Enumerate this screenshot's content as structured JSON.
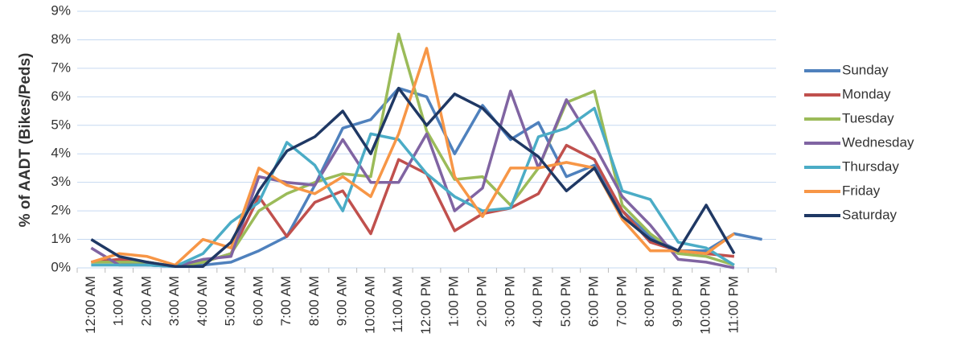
{
  "chart_data": {
    "type": "line",
    "y_label": "% of AADT (Bikes/Peds)",
    "categories": [
      "12:00 AM",
      "1:00 AM",
      "2:00 AM",
      "3:00 AM",
      "4:00 AM",
      "5:00 AM",
      "6:00 AM",
      "7:00 AM",
      "8:00 AM",
      "9:00 AM",
      "10:00 AM",
      "11:00 AM",
      "12:00 PM",
      "1:00 PM",
      "2:00 PM",
      "3:00 PM",
      "4:00 PM",
      "5:00 PM",
      "6:00 PM",
      "7:00 PM",
      "8:00 PM",
      "9:00 PM",
      "10:00 PM",
      "11:00 PM",
      null
    ],
    "series": [
      {
        "name": "Sunday",
        "color": "#4f81bd",
        "values": [
          0.2,
          0.2,
          0.1,
          0.05,
          0.1,
          0.2,
          0.6,
          1.1,
          2.9,
          4.9,
          5.2,
          6.3,
          6.0,
          4.0,
          5.7,
          4.5,
          5.1,
          3.2,
          3.6,
          2.0,
          1.1,
          0.6,
          0.6,
          1.2,
          1.0
        ]
      },
      {
        "name": "Monday",
        "color": "#c0504d",
        "values": [
          0.2,
          0.3,
          0.2,
          0.05,
          0.2,
          0.5,
          2.5,
          1.1,
          2.3,
          2.7,
          1.2,
          3.8,
          3.3,
          1.3,
          1.9,
          2.1,
          2.6,
          4.3,
          3.8,
          2.0,
          0.9,
          0.6,
          0.5,
          0.4,
          null
        ]
      },
      {
        "name": "Tuesday",
        "color": "#9bbb59",
        "values": [
          0.2,
          0.2,
          0.2,
          0.05,
          0.2,
          0.5,
          2.0,
          2.6,
          3.0,
          3.3,
          3.2,
          8.2,
          4.8,
          3.1,
          3.2,
          2.2,
          3.5,
          5.8,
          6.2,
          2.2,
          1.2,
          0.5,
          0.4,
          0.1,
          null
        ]
      },
      {
        "name": "Wednesday",
        "color": "#8064a2",
        "values": [
          0.7,
          0.1,
          0.1,
          0.05,
          0.3,
          0.4,
          3.2,
          3.0,
          2.9,
          4.5,
          3.0,
          3.0,
          4.7,
          2.0,
          2.8,
          6.2,
          3.5,
          5.9,
          4.3,
          2.5,
          1.5,
          0.3,
          0.2,
          0.0,
          null
        ]
      },
      {
        "name": "Thursday",
        "color": "#4bacc6",
        "values": [
          0.1,
          0.1,
          0.1,
          0.05,
          0.5,
          1.6,
          2.3,
          4.4,
          3.6,
          2.0,
          4.7,
          4.5,
          3.3,
          2.5,
          2.0,
          2.1,
          4.6,
          4.9,
          5.6,
          2.7,
          2.4,
          0.9,
          0.7,
          0.1,
          null
        ]
      },
      {
        "name": "Friday",
        "color": "#f79646",
        "values": [
          0.2,
          0.5,
          0.4,
          0.1,
          1.0,
          0.7,
          3.5,
          2.9,
          2.6,
          3.2,
          2.5,
          4.7,
          7.7,
          3.2,
          1.8,
          3.5,
          3.5,
          3.7,
          3.5,
          1.7,
          0.6,
          0.6,
          0.5,
          1.2,
          null
        ]
      },
      {
        "name": "Saturday",
        "color": "#1f3864",
        "values": [
          1.0,
          0.4,
          0.2,
          0.05,
          0.05,
          0.9,
          2.7,
          4.1,
          4.6,
          5.5,
          4.0,
          6.3,
          5.0,
          6.1,
          5.6,
          4.6,
          3.9,
          2.7,
          3.5,
          1.8,
          1.0,
          0.6,
          2.2,
          0.5,
          null
        ]
      }
    ],
    "ylim": [
      0,
      9
    ],
    "yticks": [
      {
        "value": 0,
        "label": "0%"
      },
      {
        "value": 1,
        "label": "1%"
      },
      {
        "value": 2,
        "label": "2%"
      },
      {
        "value": 3,
        "label": "3%"
      },
      {
        "value": 4,
        "label": "4%"
      },
      {
        "value": 5,
        "label": "5%"
      },
      {
        "value": 6,
        "label": "6%"
      },
      {
        "value": 7,
        "label": "7%"
      },
      {
        "value": 8,
        "label": "8%"
      },
      {
        "value": 9,
        "label": "9%"
      }
    ],
    "grid": true,
    "legend": "right"
  }
}
